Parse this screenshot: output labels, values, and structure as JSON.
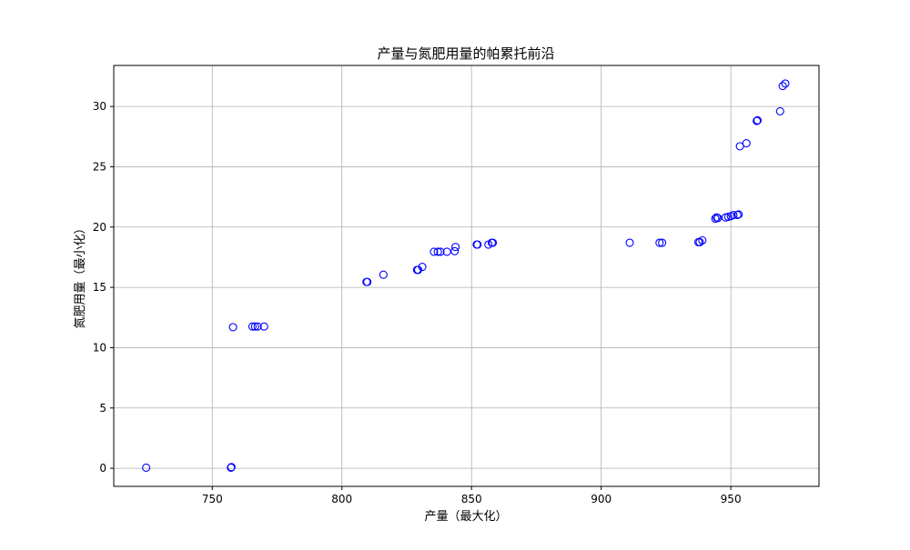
{
  "chart_data": {
    "type": "scatter",
    "title": "产量与氮肥用量的帕累托前沿",
    "xlabel": "产量（最大化）",
    "ylabel": "氮肥用量（最小化）",
    "xlim": [
      712,
      984
    ],
    "ylim": [
      -1.5,
      33.4
    ],
    "xticks": [
      750,
      800,
      850,
      900,
      950
    ],
    "yticks": [
      0,
      5,
      10,
      15,
      20,
      25,
      30
    ],
    "grid": true,
    "marker": "hollow-circle",
    "marker_color": "#0000ff",
    "points": [
      [
        724.5,
        0.05
      ],
      [
        757.2,
        0.05
      ],
      [
        757.4,
        0.1
      ],
      [
        758.0,
        11.7
      ],
      [
        765.5,
        11.75
      ],
      [
        766.5,
        11.75
      ],
      [
        767.5,
        11.75
      ],
      [
        770.0,
        11.75
      ],
      [
        809.5,
        15.45
      ],
      [
        809.8,
        15.45
      ],
      [
        816.0,
        16.05
      ],
      [
        829.0,
        16.45
      ],
      [
        829.4,
        16.45
      ],
      [
        831.0,
        16.7
      ],
      [
        835.5,
        17.95
      ],
      [
        837.0,
        17.95
      ],
      [
        838.0,
        17.95
      ],
      [
        840.5,
        17.95
      ],
      [
        843.5,
        18.0
      ],
      [
        843.8,
        18.35
      ],
      [
        852.0,
        18.55
      ],
      [
        852.3,
        18.55
      ],
      [
        856.5,
        18.55
      ],
      [
        857.8,
        18.7
      ],
      [
        858.2,
        18.7
      ],
      [
        911.0,
        18.7
      ],
      [
        922.5,
        18.7
      ],
      [
        923.5,
        18.7
      ],
      [
        937.5,
        18.75
      ],
      [
        938.0,
        18.75
      ],
      [
        939.0,
        18.9
      ],
      [
        944.0,
        20.7
      ],
      [
        944.5,
        20.8
      ],
      [
        945.0,
        20.75
      ],
      [
        948.0,
        20.8
      ],
      [
        949.0,
        20.85
      ],
      [
        950.0,
        20.9
      ],
      [
        951.0,
        21.0
      ],
      [
        952.5,
        21.0
      ],
      [
        953.0,
        21.05
      ],
      [
        953.5,
        26.7
      ],
      [
        956.0,
        26.95
      ],
      [
        960.0,
        28.8
      ],
      [
        960.3,
        28.85
      ],
      [
        969.0,
        29.6
      ],
      [
        970.0,
        31.7
      ],
      [
        971.0,
        31.9
      ]
    ]
  }
}
